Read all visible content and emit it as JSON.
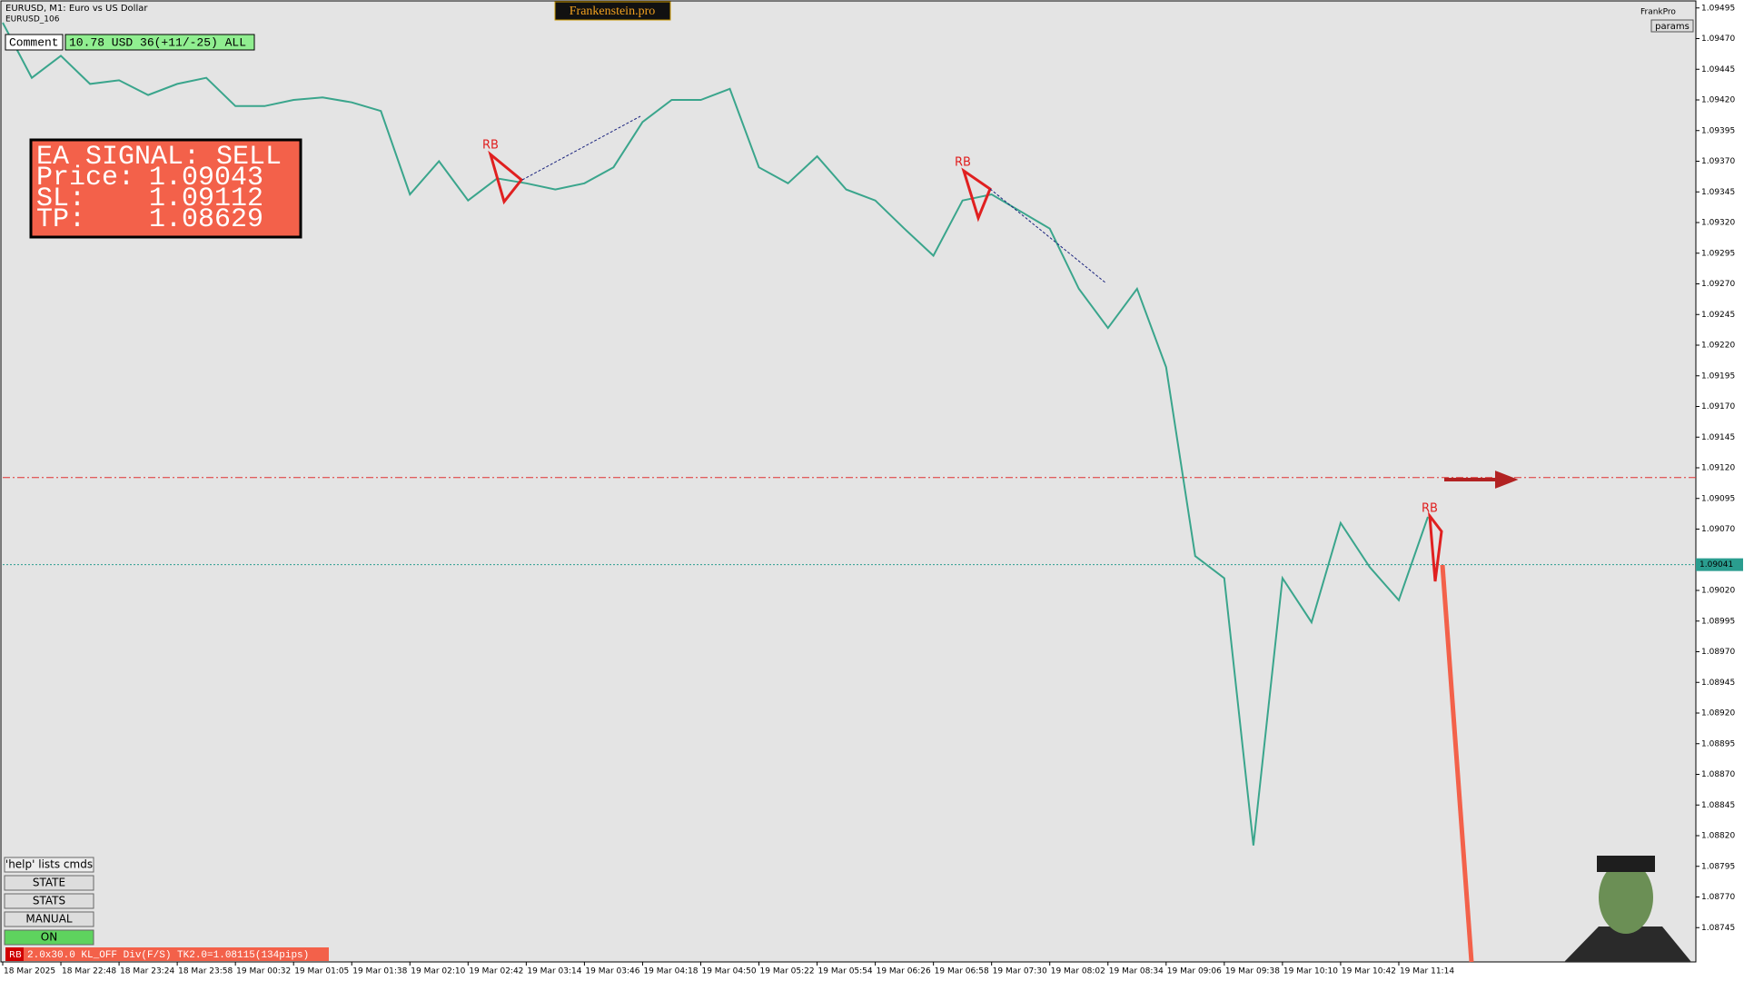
{
  "window": {
    "symbol": "EURUSD, M1:  Euro vs US Dollar",
    "account": "EURUSD_106",
    "brand": "Frankenstein.pro",
    "user": "FrankPro",
    "params": "params"
  },
  "comment": {
    "label": "Comment",
    "text": "10.78 USD 36(+11/-25) ALL"
  },
  "signal": {
    "title": "EA SIGNAL: SELL",
    "price_label": "Price:",
    "price": 1.09043,
    "sl_label": "SL:",
    "sl": 1.09112,
    "tp_label": "TP:",
    "tp": 1.08629
  },
  "buttons": [
    "'help' lists cmds",
    "STATE",
    "STATS",
    "MANUAL",
    "ON"
  ],
  "status": {
    "tag": "RB",
    "text": "2.0x30.0 KL_OFF Div(F/S) TK2.0=1.08115(134pips)"
  },
  "chart_data": {
    "type": "line",
    "color": "#3aa58c",
    "categories": [
      "18 Mar 2025",
      null,
      "18 Mar 22:48",
      null,
      "18 Mar 23:24",
      null,
      "18 Mar 23:58",
      null,
      "19 Mar 00:32",
      null,
      "19 Mar 01:05",
      null,
      "19 Mar 01:38",
      null,
      "19 Mar 02:10",
      null,
      "19 Mar 02:42",
      null,
      "19 Mar 03:14",
      null,
      "19 Mar 03:46",
      null,
      "19 Mar 04:18",
      null,
      "19 Mar 04:50",
      null,
      "19 Mar 05:22",
      null,
      "19 Mar 05:54",
      null,
      "19 Mar 06:26",
      null,
      "19 Mar 06:58",
      null,
      "19 Mar 07:30",
      null,
      "19 Mar 08:02",
      null,
      "19 Mar 08:34",
      null,
      "19 Mar 09:06",
      null,
      "19 Mar 09:38",
      null,
      "19 Mar 10:10",
      null,
      "19 Mar 10:42",
      null,
      "19 Mar 11:14",
      null
    ],
    "values": [
      1.09483,
      1.09438,
      1.09456,
      1.09433,
      1.09436,
      1.09424,
      1.09433,
      1.09438,
      1.09415,
      1.09415,
      1.0942,
      1.09422,
      1.09418,
      1.09411,
      1.09343,
      1.0937,
      1.09338,
      1.09356,
      1.09352,
      1.09347,
      1.09352,
      1.09365,
      1.09402,
      1.0942,
      1.0942,
      1.09429,
      1.09365,
      1.09352,
      1.09374,
      1.09347,
      1.09338,
      1.09315,
      1.09293,
      1.09338,
      1.09343,
      1.09329,
      1.09315,
      1.09266,
      1.09234,
      1.09266,
      1.09202,
      1.09048,
      1.0903,
      1.08812,
      1.0903,
      1.08994,
      1.09075,
      1.09039,
      1.09012,
      1.0908
    ],
    "ylim": [
      1.0872,
      1.095
    ],
    "yticks": [
      1.08745,
      {
        "value": 1.0877,
        "label": "1.08770"
      },
      1.08795,
      {
        "value": 1.0882,
        "label": "1.08820"
      },
      1.08845,
      {
        "value": 1.0887,
        "label": "1.08870"
      },
      1.08895,
      {
        "value": 1.0892,
        "label": "1.08920"
      },
      1.08945,
      {
        "value": 1.0897,
        "label": "1.08970"
      },
      1.08995,
      {
        "value": 1.0902,
        "label": "1.09020"
      },
      {
        "value": 1.0907,
        "label": "1.09070"
      },
      1.09095,
      {
        "value": 1.0912,
        "label": "1.09120"
      },
      1.09145,
      {
        "value": 1.0917,
        "label": "1.09170"
      },
      1.09195,
      {
        "value": 1.0922,
        "label": "1.09220"
      },
      1.09245,
      {
        "value": 1.0927,
        "label": "1.09270"
      },
      1.09295,
      {
        "value": 1.0932,
        "label": "1.09320"
      },
      1.09345,
      {
        "value": 1.0937,
        "label": "1.09370"
      },
      1.09395,
      {
        "value": 1.0942,
        "label": "1.09420"
      },
      1.09445,
      {
        "value": 1.0947,
        "label": "1.09470"
      },
      1.09495
    ],
    "current_price": 1.09041,
    "pattern_labels": [
      "RB",
      "RB",
      "RB"
    ]
  }
}
